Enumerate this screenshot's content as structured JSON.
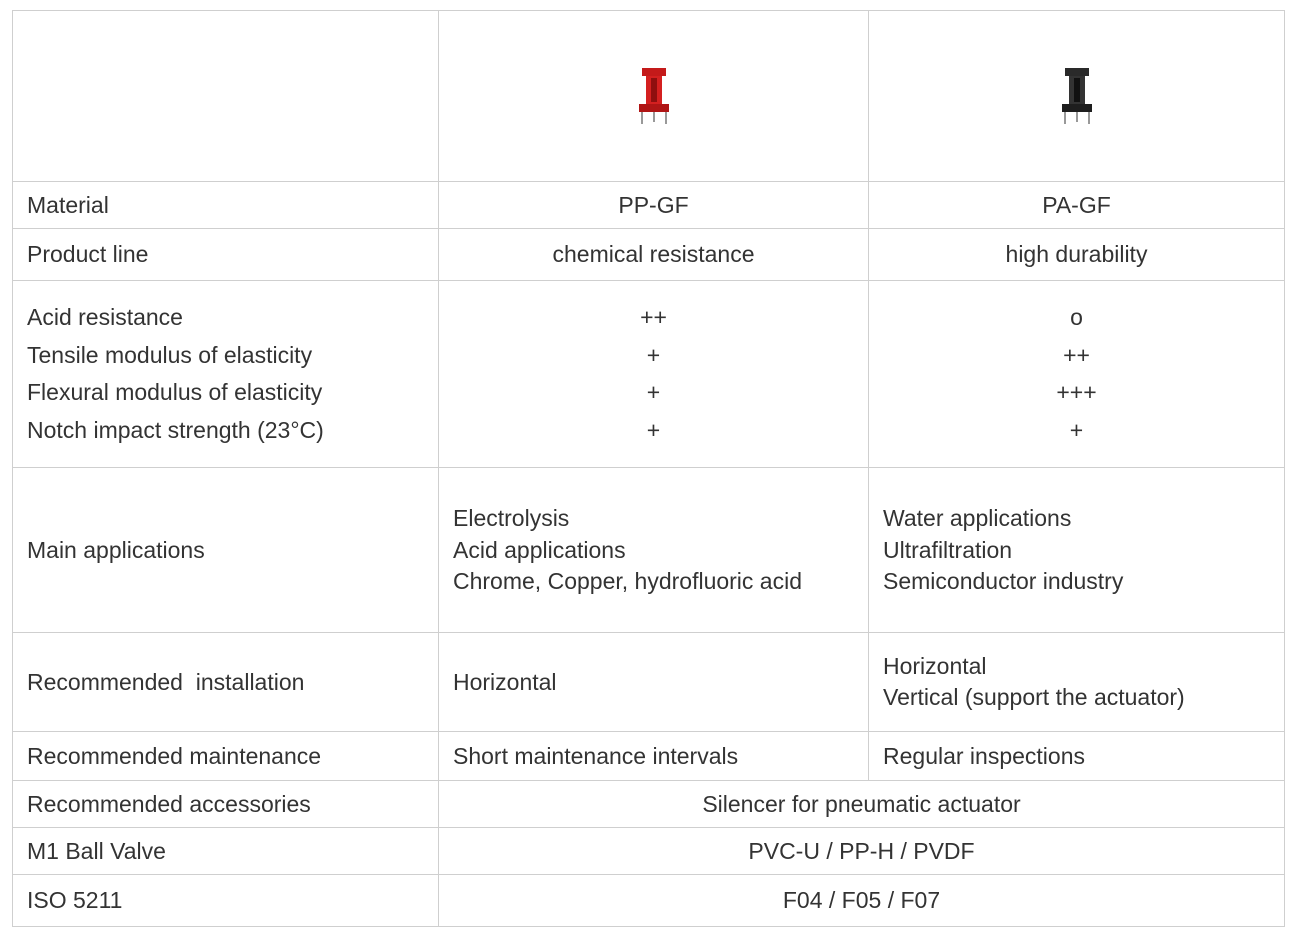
{
  "table": {
    "rows": [
      {
        "label": [
          "Material"
        ],
        "cells": [
          [
            "PP-GF"
          ],
          [
            "PA-GF"
          ]
        ]
      },
      {
        "label": [
          "Product line"
        ],
        "cells": [
          [
            "chemical resistance"
          ],
          [
            "high durability"
          ]
        ]
      },
      {
        "label": [
          "Acid resistance",
          "Tensile modulus of elasticity",
          "Flexural modulus of elasticity",
          "Notch impact strength (23°C)"
        ],
        "cells": [
          [
            "++",
            "+",
            "+",
            "+"
          ],
          [
            "o",
            "++",
            "+++",
            "+"
          ]
        ]
      },
      {
        "label": [
          "Main applications"
        ],
        "cells": [
          [
            "Electrolysis",
            "Acid applications",
            "Chrome, Copper, hydrofluoric acid"
          ],
          [
            "Water applications",
            "Ultrafiltration",
            "Semiconductor industry"
          ]
        ]
      },
      {
        "label": [
          "Recommended  installation"
        ],
        "cells": [
          [
            "Horizontal"
          ],
          [
            "Horizontal",
            "Vertical (support the actuator)"
          ]
        ]
      },
      {
        "label": [
          "Recommended maintenance"
        ],
        "cells": [
          [
            "Short maintenance intervals"
          ],
          [
            "Regular inspections"
          ]
        ]
      },
      {
        "label": [
          "Recommended accessories"
        ],
        "merged": [
          "Silencer for pneumatic actuator"
        ]
      },
      {
        "label": [
          "M1 Ball Valve"
        ],
        "merged": [
          "PVC-U / PP-H / PVDF"
        ]
      },
      {
        "label": [
          "ISO 5211"
        ],
        "merged": [
          "F04 / F05 / F07"
        ]
      }
    ]
  }
}
